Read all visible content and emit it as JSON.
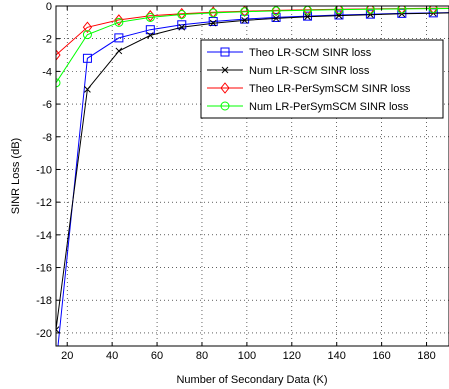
{
  "chart_data": {
    "type": "line",
    "xlabel": "Number of Secondary Data (K)",
    "ylabel": "SINR Loss (dB)",
    "xlim": [
      15,
      190
    ],
    "ylim": [
      -20.8,
      0
    ],
    "xticks": [
      20,
      40,
      60,
      80,
      100,
      120,
      140,
      160,
      180
    ],
    "yticks": [
      0,
      -2,
      -4,
      -6,
      -8,
      -10,
      -12,
      -14,
      -16,
      -18,
      -20
    ],
    "grid": true,
    "legend_position": "right-upper",
    "x": [
      15,
      29,
      43,
      57,
      71,
      85,
      99,
      113,
      127,
      141,
      155,
      169,
      183,
      197
    ],
    "series": [
      {
        "name": "Theo LR-SCM SINR loss",
        "color": "#0000ff",
        "marker": "square",
        "values": [
          -22,
          -3.2,
          -1.95,
          -1.45,
          -1.15,
          -0.95,
          -0.8,
          -0.7,
          -0.62,
          -0.55,
          -0.5,
          -0.45,
          -0.42,
          -0.39
        ]
      },
      {
        "name": "Num LR-SCM SINR loss",
        "color": "#000000",
        "marker": "x",
        "values": [
          -19.8,
          -5.1,
          -2.75,
          -1.8,
          -1.3,
          -1.05,
          -0.88,
          -0.76,
          -0.66,
          -0.59,
          -0.53,
          -0.48,
          -0.44,
          -0.4
        ]
      },
      {
        "name": "Theo LR-PerSymSCM SINR loss",
        "color": "#ff0000",
        "marker": "diamond",
        "values": [
          -3.0,
          -1.3,
          -0.85,
          -0.6,
          -0.47,
          -0.38,
          -0.32,
          -0.27,
          -0.23,
          -0.2,
          -0.18,
          -0.16,
          -0.14,
          -0.13
        ]
      },
      {
        "name": "Num LR-PerSymSCM SINR loss",
        "color": "#00ff00",
        "marker": "circle",
        "values": [
          -4.7,
          -1.75,
          -1.0,
          -0.7,
          -0.52,
          -0.42,
          -0.35,
          -0.3,
          -0.26,
          -0.22,
          -0.2,
          -0.18,
          -0.16,
          -0.14
        ]
      }
    ]
  }
}
